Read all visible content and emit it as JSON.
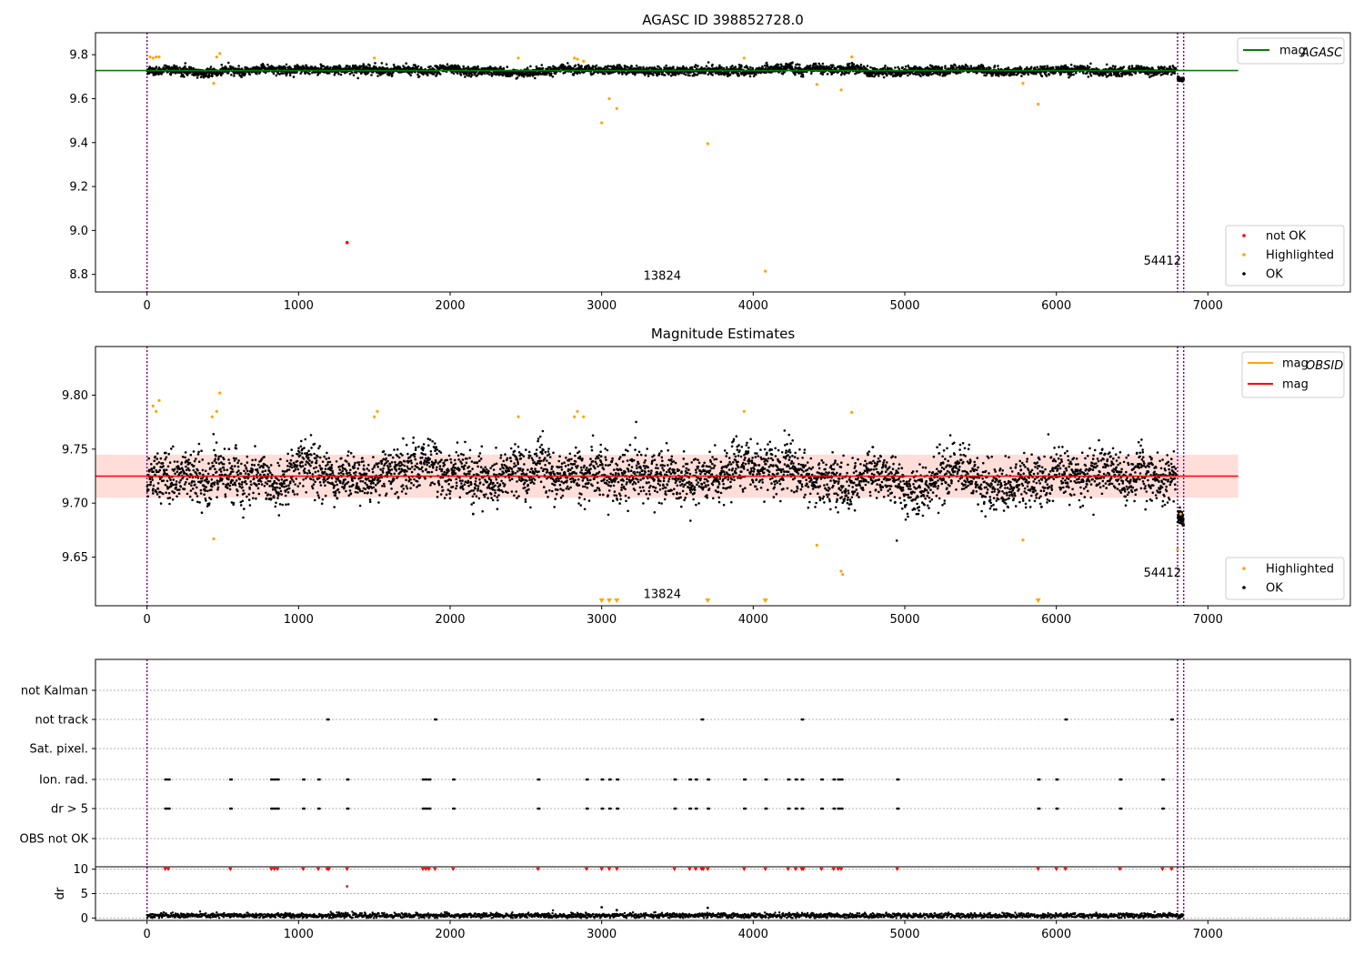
{
  "chart_data": [
    {
      "id": "top",
      "type": "scatter",
      "title": "AGASC ID 398852728.0",
      "xlim": [
        -340,
        7940
      ],
      "ylim": [
        8.72,
        9.9
      ],
      "xticks": [
        "0",
        "1000",
        "2000",
        "3000",
        "4000",
        "5000",
        "6000",
        "7000"
      ],
      "xtick_values": [
        0,
        1000,
        2000,
        3000,
        4000,
        5000,
        6000,
        7000
      ],
      "yticks": [
        "8.8",
        "9.0",
        "9.2",
        "9.4",
        "9.6",
        "9.8"
      ],
      "ytick_values": [
        8.8,
        9.0,
        9.2,
        9.4,
        9.6,
        9.8
      ],
      "vlines": [
        0,
        6800,
        6840
      ],
      "hline": {
        "y": 9.728,
        "x0": -340,
        "x1": 7200,
        "color": "#008000"
      },
      "ok_band": {
        "x0": 0,
        "x1": 6790,
        "center": 9.728,
        "spread": 0.018,
        "color": "#000000",
        "count": 4200
      },
      "tail_band": {
        "x0": 6800,
        "x1": 6840,
        "center": 9.69,
        "spread": 0.008,
        "count": 60
      },
      "highlighted": [
        [
          20,
          9.79
        ],
        [
          40,
          9.785
        ],
        [
          60,
          9.79
        ],
        [
          80,
          9.79
        ],
        [
          440,
          9.67
        ],
        [
          460,
          9.79
        ],
        [
          480,
          9.805
        ],
        [
          1500,
          9.785
        ],
        [
          2450,
          9.785
        ],
        [
          2820,
          9.785
        ],
        [
          2840,
          9.78
        ],
        [
          2880,
          9.77
        ],
        [
          3000,
          9.49
        ],
        [
          3050,
          9.6
        ],
        [
          3100,
          9.555
        ],
        [
          3700,
          9.395
        ],
        [
          3940,
          9.785
        ],
        [
          4080,
          8.815
        ],
        [
          4420,
          9.665
        ],
        [
          4580,
          9.64
        ],
        [
          4650,
          9.79
        ],
        [
          5780,
          9.67
        ],
        [
          5880,
          9.575
        ]
      ],
      "not_ok": [
        [
          1320,
          8.945
        ]
      ],
      "annotations": [
        {
          "text": "13824",
          "x": 3400,
          "y": 8.775
        },
        {
          "text": "54412",
          "x": 6700,
          "y": 8.845
        }
      ],
      "legend": {
        "top": [
          {
            "label": "mag",
            "sub": "AGASC",
            "color": "#008000"
          }
        ],
        "bottom": [
          {
            "label": "not OK",
            "color": "#ff0000"
          },
          {
            "label": "Highlighted",
            "color": "#ffa500"
          },
          {
            "label": "OK",
            "color": "#000000"
          }
        ]
      }
    },
    {
      "id": "middle",
      "type": "scatter",
      "title": "Magnitude Estimates",
      "xlim": [
        -340,
        7940
      ],
      "ylim": [
        9.605,
        9.845
      ],
      "xticks": [
        "0",
        "1000",
        "2000",
        "3000",
        "4000",
        "5000",
        "6000",
        "7000"
      ],
      "xtick_values": [
        0,
        1000,
        2000,
        3000,
        4000,
        5000,
        6000,
        7000
      ],
      "yticks": [
        "9.65",
        "9.70",
        "9.75",
        "9.80"
      ],
      "ytick_values": [
        9.65,
        9.7,
        9.75,
        9.8
      ],
      "vlines": [
        0,
        6800,
        6840
      ],
      "hline": {
        "y": 9.725,
        "x0": -340,
        "x1": 7200,
        "color": "#ff0000"
      },
      "band": {
        "y0": 9.705,
        "y1": 9.745,
        "x0": -340,
        "x1": 7200,
        "color": "#ffb6ad"
      },
      "ok_band": {
        "x0": 0,
        "x1": 6790,
        "center": 9.725,
        "spread": 0.02,
        "color": "#000000",
        "count": 4200
      },
      "tail_band": {
        "x0": 6800,
        "x1": 6840,
        "center": 9.688,
        "spread": 0.006,
        "count": 60
      },
      "highlighted": [
        [
          40,
          9.79
        ],
        [
          60,
          9.785
        ],
        [
          80,
          9.795
        ],
        [
          430,
          9.78
        ],
        [
          440,
          9.667
        ],
        [
          460,
          9.785
        ],
        [
          480,
          9.802
        ],
        [
          1500,
          9.78
        ],
        [
          1520,
          9.785
        ],
        [
          2450,
          9.78
        ],
        [
          2820,
          9.78
        ],
        [
          2840,
          9.785
        ],
        [
          2880,
          9.78
        ],
        [
          3940,
          9.785
        ],
        [
          4420,
          9.661
        ],
        [
          4580,
          9.637
        ],
        [
          4590,
          9.634
        ],
        [
          4650,
          9.784
        ],
        [
          5780,
          9.666
        ],
        [
          6800,
          9.657
        ],
        [
          6820,
          9.69
        ]
      ],
      "offscale_down": [
        3000,
        3050,
        3100,
        3700,
        4080,
        5880
      ],
      "annotations": [
        {
          "text": "13824",
          "x": 3400,
          "y": 9.612
        },
        {
          "text": "54412",
          "x": 6700,
          "y": 9.632
        }
      ],
      "legend": {
        "top": [
          {
            "label": "mag",
            "sub": "OBSID",
            "color": "#ffa500"
          },
          {
            "label": "mag",
            "sub": "",
            "color": "#ff0000"
          }
        ],
        "bottom": [
          {
            "label": "Highlighted",
            "color": "#ffa500"
          },
          {
            "label": "OK",
            "color": "#000000"
          }
        ]
      }
    },
    {
      "id": "flags",
      "type": "scatter",
      "xlim": [
        -340,
        7940
      ],
      "vlines": [
        0,
        6800,
        6840
      ],
      "rows": [
        {
          "label": "not Kalman",
          "x": []
        },
        {
          "label": "not track",
          "x": [
            1190,
            1900,
            3660,
            4320,
            6060,
            6760
          ]
        },
        {
          "label": "Sat. pixel.",
          "x": []
        },
        {
          "label": "Ion. rad.",
          "x": [
            120,
            140,
            550,
            820,
            840,
            860,
            1030,
            1130,
            1320,
            1820,
            1840,
            1860,
            2020,
            2580,
            2900,
            3000,
            3050,
            3100,
            3480,
            3580,
            3620,
            3700,
            3940,
            4080,
            4230,
            4280,
            4320,
            4450,
            4530,
            4560,
            4580,
            4950,
            5880,
            6000,
            6420,
            6700
          ]
        },
        {
          "label": "dr > 5",
          "x": [
            120,
            140,
            550,
            820,
            840,
            860,
            1030,
            1130,
            1320,
            1820,
            1840,
            1860,
            2020,
            2580,
            2900,
            3000,
            3050,
            3100,
            3480,
            3580,
            3620,
            3700,
            3940,
            4080,
            4230,
            4280,
            4320,
            4450,
            4530,
            4560,
            4580,
            4950,
            5880,
            6000,
            6420,
            6700
          ]
        },
        {
          "label": "OBS not OK",
          "x": []
        }
      ]
    },
    {
      "id": "dr",
      "type": "scatter",
      "ylabel": "dr",
      "xlim": [
        -340,
        7940
      ],
      "ylim": [
        -0.5,
        10.5
      ],
      "xticks": [
        "0",
        "1000",
        "2000",
        "3000",
        "4000",
        "5000",
        "6000",
        "7000"
      ],
      "xtick_values": [
        0,
        1000,
        2000,
        3000,
        4000,
        5000,
        6000,
        7000
      ],
      "yticks": [
        "0",
        "5",
        "10"
      ],
      "ytick_values": [
        0,
        5,
        10
      ],
      "vlines": [
        0,
        6800,
        6840
      ],
      "ok_band": {
        "x0": 0,
        "x1": 6840,
        "center": 0.5,
        "spread": 0.25,
        "count": 2500
      },
      "extra_points": [
        [
          3000,
          2.2
        ],
        [
          3700,
          2.1
        ],
        [
          1320,
          6.5
        ],
        [
          3100,
          1.6
        ]
      ],
      "capped": [
        120,
        140,
        550,
        820,
        840,
        860,
        1030,
        1130,
        1190,
        1200,
        1320,
        1820,
        1840,
        1860,
        1900,
        2020,
        2580,
        2900,
        3000,
        3050,
        3100,
        3480,
        3580,
        3620,
        3660,
        3670,
        3700,
        3940,
        4080,
        4230,
        4280,
        4320,
        4330,
        4450,
        4530,
        4560,
        4580,
        4950,
        5880,
        6000,
        6060,
        6420,
        6700,
        6760
      ]
    }
  ]
}
